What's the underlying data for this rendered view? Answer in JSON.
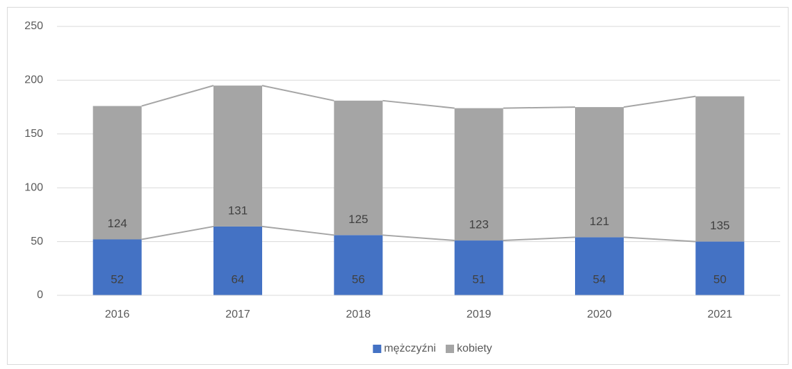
{
  "chart_data": {
    "type": "stacked_bar",
    "categories": [
      "2016",
      "2017",
      "2018",
      "2019",
      "2020",
      "2021"
    ],
    "series": [
      {
        "name": "mężczyźni",
        "color": "#4472c4",
        "values": [
          52,
          64,
          56,
          51,
          54,
          50
        ]
      },
      {
        "name": "kobiety",
        "color": "#a5a5a5",
        "values": [
          124,
          131,
          125,
          123,
          121,
          135
        ]
      }
    ],
    "ylim": [
      0,
      250
    ],
    "yticks": [
      0,
      50,
      100,
      150,
      200,
      250
    ],
    "grid": true,
    "legend": "bottom",
    "series_lines": true
  }
}
